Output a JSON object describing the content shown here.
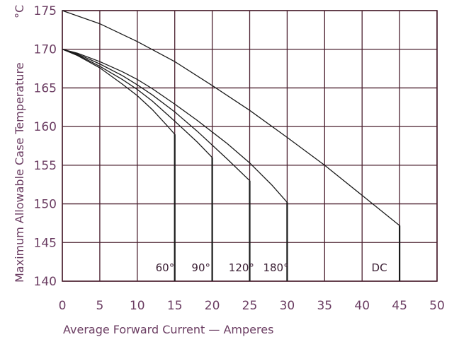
{
  "chart_data": {
    "type": "line",
    "xlabel": "Average Forward Current — Amperes",
    "ylabel": "Maximum Allowable Case Temperature",
    "ylabel_unit": "°C",
    "xlim": [
      0,
      50
    ],
    "ylim": [
      140,
      175
    ],
    "x_ticks": [
      0,
      5,
      10,
      15,
      20,
      25,
      30,
      35,
      40,
      45,
      50
    ],
    "y_ticks": [
      140,
      145,
      150,
      155,
      160,
      165,
      170,
      175
    ],
    "grid": true,
    "series": [
      {
        "name": "60°",
        "label_x": 13.7,
        "points": [
          [
            0,
            170
          ],
          [
            2,
            169.2
          ],
          [
            5,
            167.6
          ],
          [
            8,
            165.5
          ],
          [
            10,
            164
          ],
          [
            12,
            162.2
          ],
          [
            14,
            160.1
          ],
          [
            15,
            159
          ]
        ]
      },
      {
        "name": "90°",
        "label_x": 18.5,
        "points": [
          [
            0,
            170
          ],
          [
            2,
            169.3
          ],
          [
            5,
            167.8
          ],
          [
            8,
            166.1
          ],
          [
            10,
            164.8
          ],
          [
            12,
            163.3
          ],
          [
            15,
            160.7
          ],
          [
            18,
            158
          ],
          [
            20,
            156
          ]
        ]
      },
      {
        "name": "120°",
        "label_x": 23.9,
        "points": [
          [
            0,
            170
          ],
          [
            2,
            169.4
          ],
          [
            5,
            168.1
          ],
          [
            8,
            166.6
          ],
          [
            10,
            165.4
          ],
          [
            12,
            164.1
          ],
          [
            15,
            161.9
          ],
          [
            18,
            159.4
          ],
          [
            20,
            157.6
          ],
          [
            22,
            155.8
          ],
          [
            25,
            153
          ]
        ]
      },
      {
        "name": "180°",
        "label_x": 28.5,
        "points": [
          [
            0,
            170
          ],
          [
            2,
            169.5
          ],
          [
            5,
            168.4
          ],
          [
            8,
            167.1
          ],
          [
            10,
            166.1
          ],
          [
            12,
            164.9
          ],
          [
            15,
            162.9
          ],
          [
            18,
            160.8
          ],
          [
            20,
            159.3
          ],
          [
            22,
            157.8
          ],
          [
            25,
            155.3
          ],
          [
            28,
            152.4
          ],
          [
            30,
            150.2
          ]
        ]
      },
      {
        "name": "DC",
        "label_x": 42.3,
        "points": [
          [
            0,
            175
          ],
          [
            5,
            173.3
          ],
          [
            10,
            171
          ],
          [
            15,
            168.4
          ],
          [
            20,
            165.3
          ],
          [
            25,
            162.1
          ],
          [
            30,
            158.6
          ],
          [
            35,
            155
          ],
          [
            40,
            151.1
          ],
          [
            45,
            147.2
          ]
        ]
      }
    ]
  }
}
